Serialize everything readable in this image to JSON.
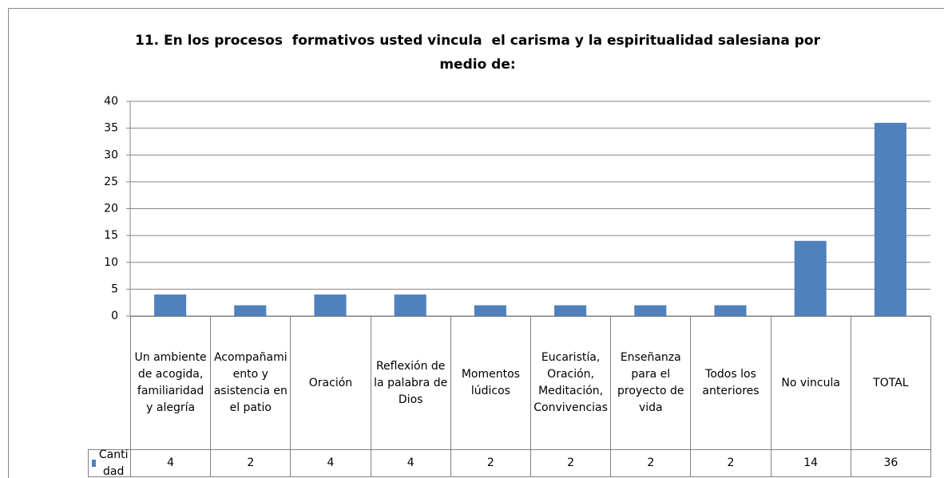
{
  "chart_data": {
    "type": "bar",
    "title": "11. En los procesos  formativos usted vincula  el carisma y la espiritualidad salesiana por medio de:",
    "categories": [
      "Un ambiente de acogida, familiaridad y alegría",
      "Acompañamiento y asistencia en el patio",
      "Oración",
      "Reflexión de la palabra de Dios",
      "Momentos lúdicos",
      "Eucaristía, Oración, Meditación, Convivencias",
      "Enseñanza para el proyecto de vida",
      "Todos los anteriores",
      "No vincula",
      "TOTAL"
    ],
    "series": [
      {
        "name": "Cantidad",
        "color": "#4f81bd",
        "values": [
          4,
          2,
          4,
          4,
          2,
          2,
          2,
          2,
          14,
          36
        ]
      }
    ],
    "ylim": [
      0,
      40
    ],
    "yticks": [
      0,
      5,
      10,
      15,
      20,
      25,
      30,
      35,
      40
    ],
    "grid": true,
    "data_table": true
  }
}
